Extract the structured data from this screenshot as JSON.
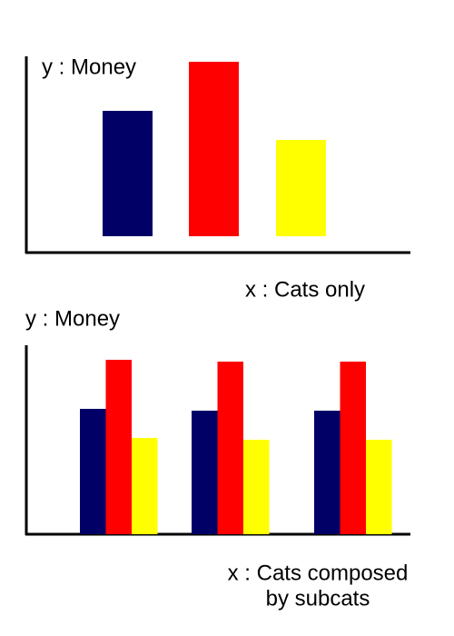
{
  "chart_data": [
    {
      "type": "bar",
      "y_label": "y : Money",
      "x_label": [
        "x : Cats only"
      ],
      "categories": [
        null,
        null,
        null
      ],
      "values": [
        138,
        192,
        106
      ],
      "colors": [
        "#000066",
        "#ff0000",
        "#ffff00"
      ],
      "ylim": [
        0,
        198
      ]
    },
    {
      "type": "grouped-bar",
      "y_label": "y : Money",
      "x_label": [
        "x : Cats composed",
        "by subcats"
      ],
      "categories": [
        null,
        null,
        null
      ],
      "series": [
        {
          "color": "#000066",
          "values": [
            138,
            136,
            136
          ]
        },
        {
          "color": "#ff0000",
          "values": [
            192,
            190,
            190
          ]
        },
        {
          "color": "#ffff00",
          "values": [
            106,
            104,
            104
          ]
        }
      ],
      "ylim": [
        0,
        208
      ]
    }
  ]
}
